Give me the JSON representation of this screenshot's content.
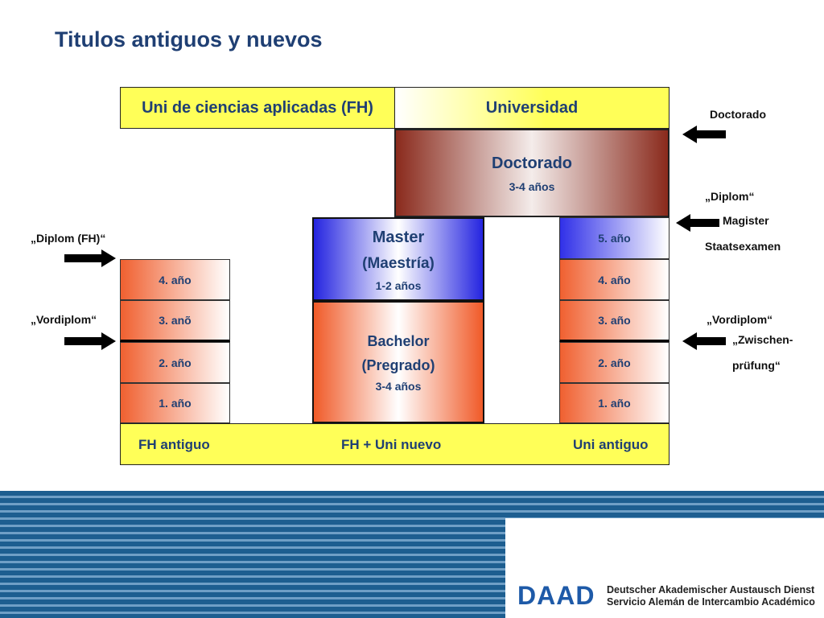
{
  "title": "Titulos antiguos y nuevos",
  "headers": {
    "fh": "Uni de ciencias aplicadas (FH)",
    "uni": "Universidad"
  },
  "doctorado": {
    "title": "Doctorado",
    "duration": "3-4 años"
  },
  "master": {
    "title": "Master",
    "subtitle": "(Maestría)",
    "duration": "1-2 años"
  },
  "bachelor": {
    "title": "Bachelor",
    "subtitle": "(Pregrado)",
    "duration": "3-4 años"
  },
  "fh_years": [
    "4. año",
    "3. anõ",
    "2. año",
    "1. año"
  ],
  "uni_years": [
    "5. año",
    "4. año",
    "3. año",
    "2. año",
    "1. año"
  ],
  "bottom": {
    "left": "FH antiguo",
    "center": "FH + Uni nuevo",
    "right": "Uni antiguo"
  },
  "left_labels": {
    "diplom_fh": "„Diplom (FH)“",
    "vordiplom": "„Vordiplom“"
  },
  "right_labels": {
    "doctorado": "Doctorado",
    "diplom": "„Diplom“",
    "magister": "Magister",
    "staatsexamen": "Staatsexamen",
    "vordiplom": "„Vordiplom“",
    "zwischen": "„Zwischen-",
    "pruefung": "prüfung“"
  },
  "footer": {
    "logo": "DAAD",
    "org_de": "Deutscher Akademischer Austausch Dienst",
    "org_es": "Servicio Alemán de Intercambio Académico"
  },
  "colors": {
    "title": "#1f3f73",
    "yellow": "#ffff58",
    "orange": "#f05a28",
    "blue": "#2424e0",
    "brown": "#8a2a1c",
    "stripe": "#1d5e90"
  }
}
